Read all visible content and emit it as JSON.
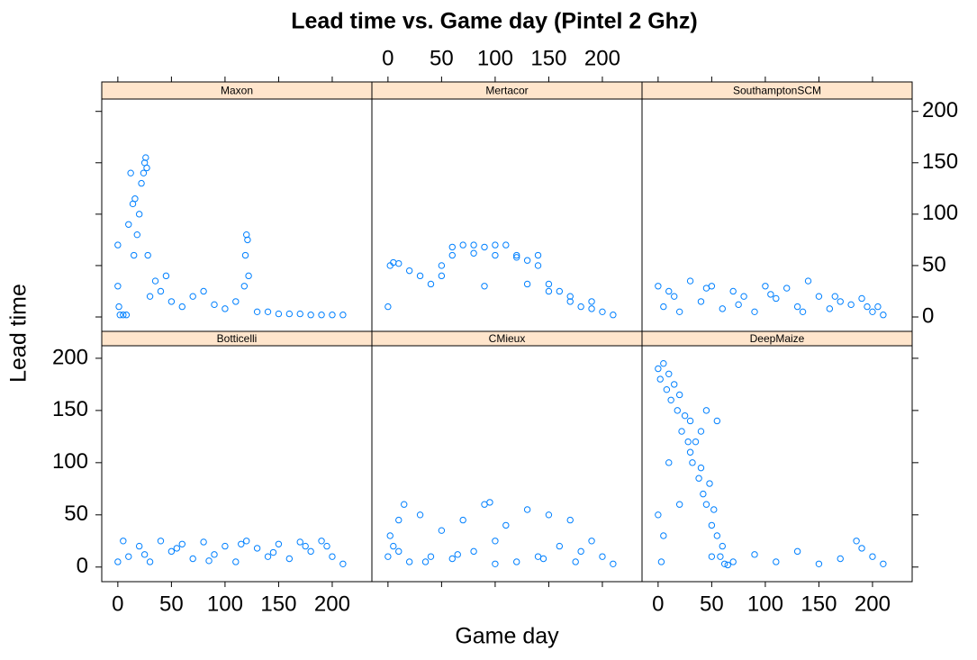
{
  "chart_data": {
    "type": "scatter",
    "title": "Lead time vs. Game day (Pintel 2 Ghz)",
    "xlabel": "Game day",
    "ylabel": "Lead time",
    "color": "#0080ff",
    "xlim": [
      -15,
      237
    ],
    "ylim": [
      -14,
      212
    ],
    "xticks": [
      0,
      50,
      100,
      150,
      200
    ],
    "yticks": [
      0,
      50,
      100,
      150,
      200
    ],
    "panels": [
      {
        "name": "Maxon",
        "x": [
          0,
          0,
          1,
          2,
          5,
          8,
          10,
          12,
          14,
          15,
          16,
          18,
          20,
          22,
          24,
          25,
          26,
          27,
          28,
          30,
          35,
          40,
          45,
          50,
          60,
          70,
          80,
          90,
          100,
          110,
          118,
          119,
          120,
          121,
          122,
          130,
          140,
          150,
          160,
          170,
          180,
          190,
          200,
          210
        ],
        "y": [
          70,
          30,
          10,
          2,
          2,
          2,
          90,
          140,
          110,
          60,
          115,
          80,
          100,
          130,
          140,
          150,
          155,
          145,
          60,
          20,
          35,
          25,
          40,
          15,
          10,
          20,
          25,
          12,
          8,
          15,
          30,
          60,
          80,
          75,
          40,
          5,
          5,
          3,
          3,
          3,
          2,
          2,
          2,
          2
        ]
      },
      {
        "name": "Mertacor",
        "x": [
          0,
          2,
          5,
          10,
          20,
          30,
          40,
          50,
          60,
          70,
          80,
          90,
          100,
          110,
          120,
          130,
          140,
          150,
          160,
          170,
          180,
          190,
          200,
          210,
          60,
          80,
          100,
          120,
          140,
          50,
          90,
          130,
          150,
          170,
          190
        ],
        "y": [
          10,
          50,
          53,
          52,
          45,
          40,
          32,
          50,
          68,
          70,
          70,
          68,
          70,
          70,
          60,
          55,
          50,
          25,
          25,
          15,
          10,
          8,
          5,
          2,
          60,
          62,
          60,
          58,
          60,
          40,
          30,
          32,
          32,
          20,
          15
        ]
      },
      {
        "name": "SouthamptonSCM",
        "x": [
          0,
          5,
          10,
          20,
          30,
          40,
          50,
          60,
          70,
          80,
          90,
          100,
          110,
          120,
          130,
          140,
          150,
          160,
          170,
          180,
          190,
          200,
          205,
          210,
          15,
          45,
          75,
          105,
          135,
          165,
          195
        ],
        "y": [
          30,
          10,
          25,
          5,
          35,
          15,
          30,
          8,
          25,
          20,
          5,
          30,
          18,
          28,
          10,
          35,
          20,
          8,
          15,
          12,
          18,
          5,
          10,
          2,
          20,
          28,
          12,
          22,
          5,
          20,
          10
        ]
      },
      {
        "name": "Botticelli",
        "x": [
          0,
          5,
          10,
          20,
          30,
          40,
          50,
          60,
          70,
          80,
          90,
          100,
          110,
          120,
          130,
          140,
          150,
          160,
          170,
          180,
          190,
          195,
          200,
          210,
          25,
          55,
          85,
          115,
          145,
          175
        ],
        "y": [
          5,
          25,
          10,
          20,
          5,
          25,
          15,
          22,
          8,
          24,
          12,
          20,
          5,
          25,
          18,
          10,
          22,
          8,
          24,
          15,
          25,
          20,
          10,
          3,
          12,
          18,
          6,
          22,
          14,
          20
        ]
      },
      {
        "name": "CMieux",
        "x": [
          0,
          2,
          5,
          10,
          15,
          20,
          30,
          40,
          50,
          60,
          70,
          80,
          90,
          95,
          100,
          110,
          120,
          130,
          140,
          150,
          160,
          170,
          180,
          190,
          200,
          210,
          10,
          35,
          65,
          100,
          145,
          175
        ],
        "y": [
          10,
          30,
          20,
          45,
          60,
          5,
          50,
          10,
          35,
          8,
          45,
          15,
          60,
          62,
          25,
          40,
          5,
          55,
          10,
          50,
          20,
          45,
          15,
          25,
          10,
          3,
          15,
          5,
          12,
          3,
          8,
          5
        ]
      },
      {
        "name": "DeepMaize",
        "x": [
          0,
          2,
          5,
          8,
          10,
          12,
          15,
          18,
          20,
          22,
          25,
          28,
          30,
          32,
          35,
          38,
          40,
          42,
          45,
          48,
          50,
          52,
          55,
          58,
          60,
          62,
          65,
          0,
          3,
          5,
          10,
          20,
          30,
          40,
          45,
          50,
          55,
          70,
          90,
          110,
          130,
          150,
          170,
          185,
          190,
          200,
          210
        ],
        "y": [
          190,
          180,
          195,
          170,
          185,
          160,
          175,
          150,
          165,
          130,
          145,
          120,
          110,
          100,
          120,
          85,
          95,
          70,
          60,
          80,
          40,
          55,
          30,
          10,
          20,
          3,
          2,
          50,
          5,
          30,
          100,
          60,
          140,
          130,
          150,
          10,
          140,
          5,
          12,
          5,
          15,
          3,
          8,
          25,
          18,
          10,
          3
        ]
      }
    ]
  }
}
